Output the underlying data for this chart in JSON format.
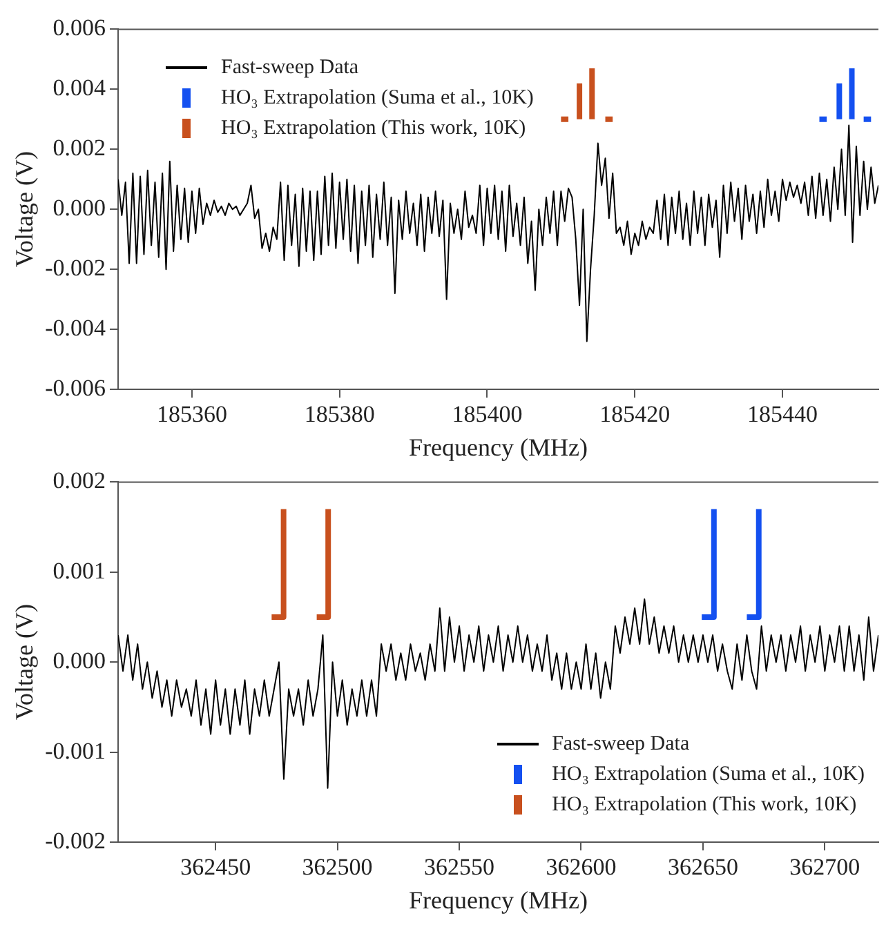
{
  "chart_data": [
    {
      "type": "line",
      "xlabel": "Frequency (MHz)",
      "ylabel": "Voltage (V)",
      "xlim": [
        185350,
        185453
      ],
      "xticks": [
        185360,
        185380,
        185400,
        185420,
        185440
      ],
      "ylim": [
        -0.006,
        0.006
      ],
      "yticks": [
        -0.006,
        -0.004,
        -0.002,
        {
          "value": 0,
          "label": "0.000"
        },
        0.002,
        0.004,
        0.006
      ],
      "legend": "top left",
      "marker": "none",
      "line_style": "solid",
      "series": [
        {
          "name": "Fast-sweep Data",
          "color": "#000000",
          "x": [
            185350,
            185350.5,
            185351,
            185351.5,
            185352,
            185352.5,
            185353,
            185353.5,
            185354,
            185354.5,
            185355,
            185355.5,
            185356,
            185356.5,
            185357,
            185357.5,
            185358,
            185358.5,
            185359,
            185359.5,
            185360,
            185360.5,
            185361,
            185361.5,
            185362,
            185362.5,
            185363,
            185363.5,
            185364,
            185364.5,
            185365,
            185365.5,
            185366,
            185366.5,
            185367,
            185367.5,
            185368,
            185368.5,
            185369,
            185369.5,
            185370,
            185370.5,
            185371,
            185371.5,
            185372,
            185372.5,
            185373,
            185373.5,
            185374,
            185374.5,
            185375,
            185375.5,
            185376,
            185376.5,
            185377,
            185377.5,
            185378,
            185378.5,
            185379,
            185379.5,
            185380,
            185380.5,
            185381,
            185381.5,
            185382,
            185382.5,
            185383,
            185383.5,
            185384,
            185384.5,
            185385,
            185385.5,
            185386,
            185386.5,
            185387,
            185387.5,
            185388,
            185388.5,
            185389,
            185389.5,
            185390,
            185390.5,
            185391,
            185391.5,
            185392,
            185392.5,
            185393,
            185393.5,
            185394,
            185394.5,
            185395,
            185395.5,
            185396,
            185396.5,
            185397,
            185397.5,
            185398,
            185398.5,
            185399,
            185399.5,
            185400,
            185400.5,
            185401,
            185401.5,
            185402,
            185402.5,
            185403,
            185403.5,
            185404,
            185404.5,
            185405,
            185405.5,
            185406,
            185406.5,
            185407,
            185407.5,
            185408,
            185408.5,
            185409,
            185409.5,
            185410,
            185410.5,
            185411,
            185411.5,
            185412,
            185412.5,
            185413,
            185413.5,
            185414,
            185414.5,
            185415,
            185415.5,
            185416,
            185416.5,
            185417,
            185417.5,
            185418,
            185418.5,
            185419,
            185419.5,
            185420,
            185420.5,
            185421,
            185421.5,
            185422,
            185422.5,
            185423,
            185423.5,
            185424,
            185424.5,
            185425,
            185425.5,
            185426,
            185426.5,
            185427,
            185427.5,
            185428,
            185428.5,
            185429,
            185429.5,
            185430,
            185430.5,
            185431,
            185431.5,
            185432,
            185432.5,
            185433,
            185433.5,
            185434,
            185434.5,
            185435,
            185435.5,
            185436,
            185436.5,
            185437,
            185437.5,
            185438,
            185438.5,
            185439,
            185439.5,
            185440,
            185440.5,
            185441,
            185441.5,
            185442,
            185442.5,
            185443,
            185443.5,
            185444,
            185444.5,
            185445,
            185445.5,
            185446,
            185446.5,
            185447,
            185447.5,
            185448,
            185448.5,
            185449,
            185449.5,
            185450,
            185450.5,
            185451,
            185451.5,
            185452,
            185452.5,
            185453
          ],
          "values": [
            0.001,
            -0.0002,
            0.0009,
            -0.0018,
            0.0012,
            -0.0018,
            0.0011,
            -0.0015,
            0.0013,
            -0.0012,
            0.0009,
            -0.0016,
            0.0012,
            -0.002,
            0.0016,
            -0.0014,
            0.0008,
            -0.001,
            0.0007,
            -0.0011,
            0.0006,
            -0.0008,
            0.0007,
            -0.0005,
            0.0002,
            -0.0002,
            0.0003,
            -0.0001,
            0.0001,
            -0.0002,
            0.0002,
            0.0,
            0.0001,
            -0.0002,
            0.0,
            0.0002,
            0.0008,
            -0.0003,
            0.0,
            -0.0013,
            -0.0008,
            -0.0014,
            -0.0006,
            -0.001,
            0.0009,
            -0.0017,
            0.0008,
            -0.0012,
            0.0005,
            -0.0019,
            0.0007,
            -0.0014,
            0.0006,
            -0.0017,
            0.0006,
            -0.0015,
            0.0011,
            -0.0012,
            0.0012,
            -0.0013,
            0.0009,
            -0.001,
            0.001,
            -0.0014,
            0.0008,
            -0.0018,
            0.0006,
            -0.0012,
            0.0008,
            -0.0016,
            0.0005,
            -0.001,
            0.0009,
            -0.0012,
            0.0004,
            -0.0028,
            0.0003,
            -0.001,
            0.0006,
            -0.0008,
            0.0002,
            -0.0012,
            0.0005,
            -0.0014,
            0.0004,
            -0.0008,
            0.0006,
            -0.0009,
            0.0003,
            -0.003,
            0.0002,
            -0.0008,
            0.0,
            -0.001,
            0.0006,
            -0.0006,
            -0.0002,
            -0.0008,
            0.0008,
            -0.0012,
            0.0007,
            -0.0008,
            0.0008,
            -0.001,
            0.0006,
            -0.0014,
            0.0008,
            -0.0009,
            0.0002,
            -0.0012,
            0.0004,
            -0.0018,
            -0.0004,
            -0.0027,
            0.0,
            -0.0012,
            0.0004,
            -0.0008,
            0.0006,
            -0.0012,
            0.0006,
            -0.0004,
            0.0007,
            0.0004,
            -0.001,
            -0.0032,
            0.0,
            -0.0044,
            -0.002,
            -0.0002,
            0.0022,
            0.0008,
            0.0017,
            -0.0003,
            0.0012,
            -0.0008,
            -0.0006,
            -0.0012,
            -0.0004,
            -0.0015,
            -0.0008,
            -0.0012,
            -0.0004,
            -0.001,
            -0.0006,
            -0.0008,
            0.0003,
            -0.001,
            0.0005,
            -0.0012,
            0.0004,
            -0.0008,
            0.0006,
            -0.001,
            0.0002,
            -0.0012,
            0.0006,
            -0.0008,
            0.0004,
            -0.0012,
            0.0005,
            -0.0006,
            0.0003,
            -0.0016,
            0.0008,
            -0.0008,
            0.0009,
            -0.0004,
            0.0007,
            -0.001,
            0.0008,
            -0.0004,
            0.0005,
            -0.0008,
            0.0006,
            -0.0006,
            0.001,
            -0.0002,
            0.0006,
            -0.0004,
            0.001,
            0.0003,
            0.0009,
            0.0004,
            0.0008,
            0.0002,
            0.0009,
            -0.0002,
            0.0011,
            -0.0003,
            0.0012,
            -0.0002,
            0.001,
            -0.0004,
            0.0014,
            0.0,
            0.002,
            -0.0002,
            0.0028,
            -0.0011,
            0.0021,
            -0.0002,
            0.0016,
            0.0,
            0.0014,
            0.0002,
            0.0008
          ]
        },
        {
          "name": "HO₃ Extrapolation (Suma et al., 10K)",
          "color": "#1450f0",
          "x": [
            185445.0,
            185446.0,
            185446.8,
            185447.7,
            185447.7,
            185448.5,
            185449.4,
            185449.4,
            185450.2,
            185451.0,
            185452.0
          ],
          "values": [
            0.003,
            0.003,
            null,
            0.003,
            0.0042,
            null,
            0.003,
            0.0047,
            null,
            0.003,
            0.003
          ]
        },
        {
          "name": "HO₃ Extrapolation (This work, 10K)",
          "color": "#c8501e",
          "x": [
            185410.0,
            185411.0,
            185411.7,
            185412.5,
            185412.5,
            185413.3,
            185414.2,
            185414.2,
            185415.1,
            185416.0,
            185417.0
          ],
          "values": [
            0.003,
            0.003,
            null,
            0.003,
            0.0042,
            null,
            0.003,
            0.0047,
            null,
            0.003,
            0.003
          ]
        }
      ]
    },
    {
      "type": "line",
      "xlabel": "Frequency (MHz)",
      "ylabel": "Voltage (V)",
      "xlim": [
        362410,
        362722
      ],
      "xticks": [
        362450,
        362500,
        362550,
        362600,
        362650,
        362700
      ],
      "ylim": [
        -0.002,
        0.002
      ],
      "yticks": [
        -0.002,
        -0.001,
        {
          "value": 0,
          "label": "0.000"
        },
        0.001,
        0.002
      ],
      "legend": "bottom right",
      "marker": "none",
      "line_style": "solid",
      "series": [
        {
          "name": "Fast-sweep Data",
          "color": "#000000",
          "x": [
            362410,
            362412,
            362414,
            362416,
            362418,
            362420,
            362422,
            362424,
            362426,
            362428,
            362430,
            362432,
            362434,
            362436,
            362438,
            362440,
            362442,
            362444,
            362446,
            362448,
            362450,
            362452,
            362454,
            362456,
            362458,
            362460,
            362462,
            362464,
            362466,
            362468,
            362470,
            362472,
            362474,
            362476,
            362478,
            362480,
            362482,
            362484,
            362486,
            362488,
            362490,
            362492,
            362494,
            362496,
            362498,
            362500,
            362502,
            362504,
            362506,
            362508,
            362510,
            362512,
            362514,
            362516,
            362518,
            362520,
            362522,
            362524,
            362526,
            362528,
            362530,
            362532,
            362534,
            362536,
            362538,
            362540,
            362542,
            362544,
            362546,
            362548,
            362550,
            362552,
            362554,
            362556,
            362558,
            362560,
            362562,
            362564,
            362566,
            362568,
            362570,
            362572,
            362574,
            362576,
            362578,
            362580,
            362582,
            362584,
            362586,
            362588,
            362590,
            362592,
            362594,
            362596,
            362598,
            362600,
            362602,
            362604,
            362606,
            362608,
            362610,
            362612,
            362614,
            362616,
            362618,
            362620,
            362622,
            362624,
            362626,
            362628,
            362630,
            362632,
            362634,
            362636,
            362638,
            362640,
            362642,
            362644,
            362646,
            362648,
            362650,
            362652,
            362654,
            362656,
            362658,
            362660,
            362662,
            362664,
            362666,
            362668,
            362670,
            362672,
            362674,
            362676,
            362678,
            362680,
            362682,
            362684,
            362686,
            362688,
            362690,
            362692,
            362694,
            362696,
            362698,
            362700,
            362702,
            362704,
            362706,
            362708,
            362710,
            362712,
            362714,
            362716,
            362718,
            362720,
            362722
          ],
          "values": [
            0.0003,
            -0.0001,
            0.0003,
            -0.0002,
            0.0002,
            -0.0003,
            0.0,
            -0.0004,
            -0.0001,
            -0.0005,
            -0.0002,
            -0.0006,
            -0.0002,
            -0.0005,
            -0.0003,
            -0.0006,
            -0.0002,
            -0.0007,
            -0.0003,
            -0.0008,
            -0.0002,
            -0.0007,
            -0.0003,
            -0.0008,
            -0.0003,
            -0.0007,
            -0.0002,
            -0.0008,
            -0.0003,
            -0.0006,
            -0.0002,
            -0.0006,
            -0.0003,
            0.0,
            -0.0013,
            -0.0003,
            -0.0006,
            -0.0003,
            -0.0007,
            -0.0002,
            -0.0006,
            -0.0003,
            0.0003,
            -0.0014,
            0.0,
            -0.0006,
            -0.0002,
            -0.0007,
            -0.0003,
            -0.0006,
            -0.0002,
            -0.0006,
            -0.0002,
            -0.0006,
            0.0002,
            -0.0001,
            0.0002,
            -0.0002,
            0.0001,
            -0.0002,
            0.0002,
            -0.0001,
            0.0001,
            -0.0002,
            0.0002,
            -0.0001,
            0.0006,
            -0.0001,
            0.0005,
            0.0,
            0.0004,
            -0.0001,
            0.0003,
            0.0,
            0.0004,
            -0.0001,
            0.0003,
            0.0,
            0.0004,
            -0.0001,
            0.0003,
            0.0,
            0.0004,
            0.0,
            0.0003,
            -0.0001,
            0.0002,
            -0.0001,
            0.0003,
            -0.0002,
            0.0001,
            -0.0003,
            0.0001,
            -0.0003,
            0.0,
            -0.0003,
            0.0002,
            -0.0003,
            0.0001,
            -0.0004,
            0.0,
            -0.0003,
            0.0004,
            0.0001,
            0.0005,
            0.0002,
            0.0006,
            0.0002,
            0.0007,
            0.0002,
            0.0005,
            0.0001,
            0.0004,
            0.0001,
            0.0004,
            0.0,
            0.0003,
            0.0,
            0.0003,
            0.0,
            0.0003,
            0.0,
            0.0003,
            -0.0001,
            0.0002,
            -0.0001,
            -0.0003,
            0.0002,
            -0.0002,
            0.0003,
            -0.0001,
            -0.0003,
            0.0004,
            -0.0001,
            0.0003,
            0.0,
            0.0003,
            -0.0001,
            0.0003,
            0.0,
            0.0004,
            -0.0001,
            0.0003,
            0.0,
            0.0004,
            -0.0001,
            0.0003,
            0.0,
            0.0004,
            -0.0001,
            0.0004,
            -0.0001,
            0.0003,
            -0.0002,
            0.0005,
            -0.0001,
            0.0003
          ]
        },
        {
          "name": "HO₃ Extrapolation (Suma et al., 10K)",
          "color": "#1450f0",
          "x": [
            362649.5,
            362654.5,
            362654.5,
            362660,
            362668,
            362672.9,
            362672.9
          ],
          "values": [
            0.0005,
            0.0005,
            0.0017,
            null,
            0.0005,
            0.0005,
            0.0017
          ]
        },
        {
          "name": "HO₃ Extrapolation (This work, 10K)",
          "color": "#c8501e",
          "x": [
            362473.0,
            362477.9,
            362477.9,
            362485,
            362491.5,
            362496.2,
            362496.2
          ],
          "values": [
            0.0005,
            0.0005,
            0.0017,
            null,
            0.0005,
            0.0005,
            0.0017
          ]
        }
      ]
    }
  ]
}
